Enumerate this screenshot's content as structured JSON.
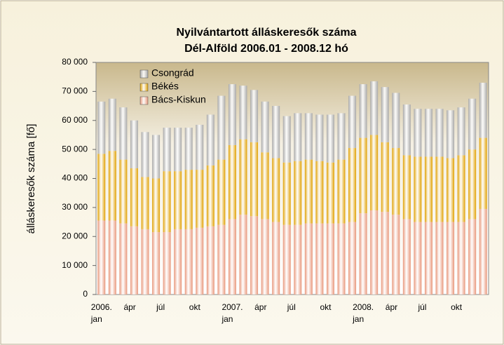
{
  "chart_data": {
    "type": "stacked_bar",
    "title": "Nyilvántartott álláskeresők száma",
    "subtitle": "Dél-Alföld  2006.01 - 2008.12 hó",
    "ylabel": "álláskeresők száma [fő]",
    "categories": [
      "2006.\njan",
      null,
      null,
      "ápr",
      null,
      null,
      "júl",
      null,
      null,
      "okt",
      null,
      null,
      "2007.\njan",
      null,
      null,
      "ápr",
      null,
      null,
      "júl",
      null,
      null,
      "okt",
      null,
      null,
      "2008.\njan",
      null,
      null,
      "ápr",
      null,
      null,
      "júl",
      null,
      null,
      "okt",
      null,
      null
    ],
    "series": [
      {
        "name": "Bács-Kiskun",
        "color": "#e8967a",
        "values": [
          25500,
          25500,
          24500,
          23500,
          22500,
          21500,
          21500,
          22500,
          22500,
          23000,
          23500,
          24000,
          26000,
          27500,
          27000,
          26000,
          25000,
          24000,
          24000,
          24500,
          24500,
          24500,
          24500,
          25000,
          28000,
          29000,
          28500,
          27500,
          26000,
          25000,
          25000,
          25000,
          25000,
          25000,
          26000,
          29500
        ]
      },
      {
        "name": "Békés",
        "color": "#e0a000",
        "values": [
          23000,
          24000,
          22000,
          20000,
          18000,
          18500,
          21000,
          20000,
          20500,
          20000,
          21000,
          22500,
          25500,
          26000,
          25500,
          23000,
          22000,
          21500,
          22000,
          22000,
          21500,
          21000,
          22000,
          25500,
          26000,
          26000,
          24000,
          23000,
          22000,
          22500,
          22500,
          22500,
          22000,
          23000,
          24000,
          24500
        ]
      },
      {
        "name": "Csongrád",
        "color": "#a8a8a8",
        "values": [
          18000,
          18000,
          18000,
          16500,
          15500,
          15000,
          15000,
          15000,
          14500,
          15500,
          17500,
          22000,
          21000,
          18500,
          18000,
          17500,
          18000,
          16000,
          16500,
          16000,
          16000,
          16500,
          16000,
          18000,
          18500,
          18500,
          19000,
          19000,
          17500,
          16500,
          16500,
          16500,
          16500,
          16500,
          17500,
          19000
        ]
      }
    ],
    "ylim": [
      0,
      80000
    ],
    "yticks": [
      0,
      {
        "value": 10000,
        "label": "10 000"
      },
      {
        "value": 20000,
        "label": "20 000"
      },
      {
        "value": 30000,
        "label": "30 000"
      },
      {
        "value": 40000,
        "label": "40 000"
      },
      {
        "value": 50000,
        "label": "50 000"
      },
      {
        "value": 60000,
        "label": "60 000"
      },
      {
        "value": 70000,
        "label": "70 000"
      },
      {
        "value": 80000,
        "label": "80 000"
      }
    ],
    "legend": "upper-left"
  }
}
